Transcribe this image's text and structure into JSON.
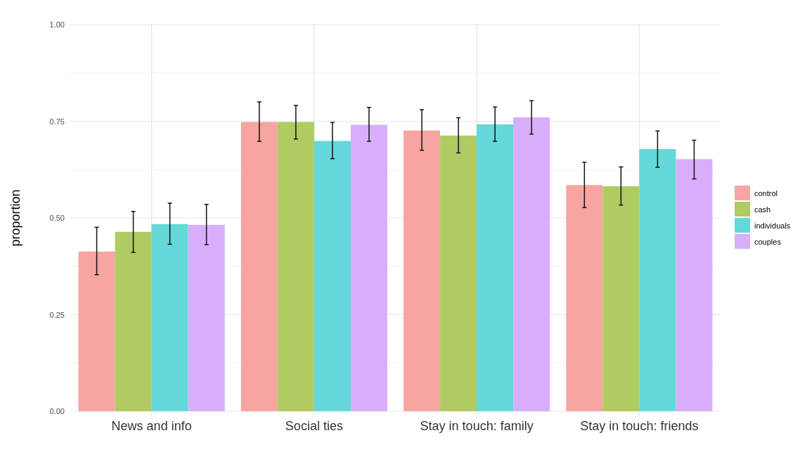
{
  "chart_data": {
    "type": "bar",
    "ylabel": "proportion",
    "categories": [
      "News and info",
      "Social ties",
      "Stay in touch: family",
      "Stay in touch: friends"
    ],
    "series": [
      {
        "name": "control",
        "color": "#f6a5a0",
        "values": [
          0.413,
          0.748,
          0.726,
          0.585
        ],
        "errors": [
          [
            0.353,
            0.476
          ],
          [
            0.698,
            0.8
          ],
          [
            0.675,
            0.78
          ],
          [
            0.527,
            0.644
          ]
        ]
      },
      {
        "name": "cash",
        "color": "#b0cb62",
        "values": [
          0.464,
          0.748,
          0.713,
          0.582
        ],
        "errors": [
          [
            0.411,
            0.517
          ],
          [
            0.704,
            0.791
          ],
          [
            0.668,
            0.759
          ],
          [
            0.533,
            0.632
          ]
        ]
      },
      {
        "name": "individuals",
        "color": "#65d8d9",
        "values": [
          0.484,
          0.699,
          0.742,
          0.678
        ],
        "errors": [
          [
            0.432,
            0.538
          ],
          [
            0.653,
            0.747
          ],
          [
            0.698,
            0.787
          ],
          [
            0.631,
            0.725
          ]
        ]
      },
      {
        "name": "couples",
        "color": "#d8aefa",
        "values": [
          0.482,
          0.741,
          0.76,
          0.652
        ],
        "errors": [
          [
            0.431,
            0.535
          ],
          [
            0.698,
            0.786
          ],
          [
            0.717,
            0.803
          ],
          [
            0.601,
            0.701
          ]
        ]
      }
    ],
    "ylim": [
      0,
      1
    ],
    "yticks": [
      {
        "value": 0,
        "label": "0.00"
      },
      {
        "value": 0.25,
        "label": "0.25"
      },
      {
        "value": 0.5,
        "label": "0.50"
      },
      {
        "value": 0.75,
        "label": "0.75"
      },
      {
        "value": 1,
        "label": "1.00"
      }
    ],
    "grid": true,
    "legend": "right"
  }
}
